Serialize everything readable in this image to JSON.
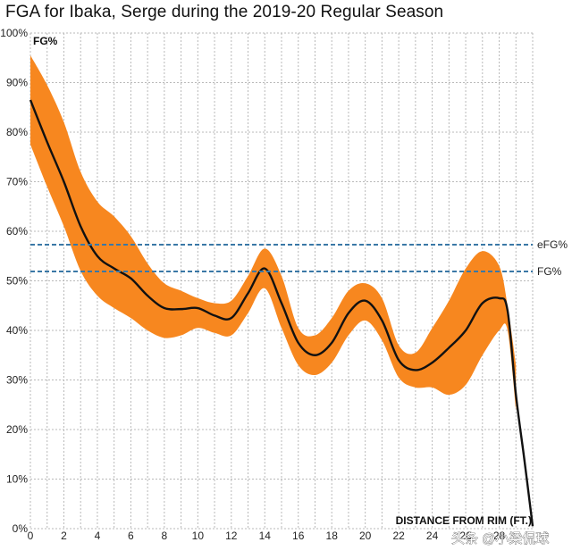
{
  "chart_data": {
    "type": "line",
    "title": "FGA for Ibaka, Serge during the 2019-20 Regular Season",
    "ylabel": "FG%",
    "xlabel": "DISTANCE FROM RIM (FT.)",
    "xlim": [
      0,
      30
    ],
    "ylim": [
      0,
      100
    ],
    "x_ticks": [
      "0",
      "2",
      "4",
      "6",
      "8",
      "10",
      "12",
      "14",
      "16",
      "18",
      "20",
      "22",
      "24",
      "26",
      "28"
    ],
    "y_ticks": [
      "0%",
      "10%",
      "20%",
      "30%",
      "40%",
      "50%",
      "60%",
      "70%",
      "80%",
      "90%",
      "100%"
    ],
    "grid": true,
    "series": [
      {
        "name": "FG%",
        "color": "#111111",
        "points": [
          [
            0,
            86.5
          ],
          [
            1,
            78
          ],
          [
            2,
            70
          ],
          [
            3,
            61
          ],
          [
            4,
            55
          ],
          [
            5,
            52.5
          ],
          [
            6,
            50.5
          ],
          [
            7,
            47
          ],
          [
            8,
            44.5
          ],
          [
            9,
            44.3
          ],
          [
            10,
            44.5
          ],
          [
            11,
            43
          ],
          [
            12,
            42.5
          ],
          [
            13,
            47.5
          ],
          [
            14,
            52.5
          ],
          [
            15,
            45.5
          ],
          [
            16,
            37.5
          ],
          [
            17,
            35
          ],
          [
            18,
            37.5
          ],
          [
            19,
            43.5
          ],
          [
            20,
            46
          ],
          [
            21,
            42
          ],
          [
            22,
            34
          ],
          [
            23,
            32
          ],
          [
            24,
            33.5
          ],
          [
            25,
            36.5
          ],
          [
            26,
            40
          ],
          [
            27,
            45.5
          ],
          [
            28,
            46.5
          ],
          [
            28.5,
            44
          ],
          [
            29,
            27
          ],
          [
            29.5,
            14
          ],
          [
            30,
            0.5
          ]
        ]
      },
      {
        "name": "FG% range",
        "color": "#f7871f",
        "upper": [
          [
            0,
            95.5
          ],
          [
            1,
            89.5
          ],
          [
            2,
            82
          ],
          [
            3,
            72
          ],
          [
            4,
            66
          ],
          [
            5,
            63
          ],
          [
            6,
            59
          ],
          [
            7,
            53.5
          ],
          [
            8,
            49.5
          ],
          [
            9,
            48
          ],
          [
            10,
            46.5
          ],
          [
            11,
            45.5
          ],
          [
            12,
            46
          ],
          [
            13,
            51
          ],
          [
            14,
            56.5
          ],
          [
            15,
            51
          ],
          [
            16,
            40.5
          ],
          [
            17,
            39
          ],
          [
            18,
            42.5
          ],
          [
            19,
            48
          ],
          [
            20,
            49.5
          ],
          [
            21,
            46.5
          ],
          [
            22,
            37
          ],
          [
            23,
            35.5
          ],
          [
            24,
            40.5
          ],
          [
            25,
            46
          ],
          [
            26,
            52.5
          ],
          [
            27,
            56
          ],
          [
            28,
            53
          ],
          [
            28.5,
            45
          ],
          [
            29,
            33
          ]
        ],
        "lower": [
          [
            0,
            77.5
          ],
          [
            1,
            69
          ],
          [
            2,
            61
          ],
          [
            3,
            52
          ],
          [
            4,
            47
          ],
          [
            5,
            44.5
          ],
          [
            6,
            42.5
          ],
          [
            7,
            40
          ],
          [
            8,
            38.5
          ],
          [
            9,
            39
          ],
          [
            10,
            40.5
          ],
          [
            11,
            39.5
          ],
          [
            12,
            39
          ],
          [
            13,
            43.5
          ],
          [
            14,
            48.5
          ],
          [
            15,
            40.5
          ],
          [
            16,
            33
          ],
          [
            17,
            31
          ],
          [
            18,
            33.5
          ],
          [
            19,
            39
          ],
          [
            20,
            42
          ],
          [
            21,
            38
          ],
          [
            22,
            30.5
          ],
          [
            23,
            28.5
          ],
          [
            24,
            28.5
          ],
          [
            25,
            27
          ],
          [
            26,
            29
          ],
          [
            27,
            35
          ],
          [
            28,
            40
          ],
          [
            28.5,
            40
          ],
          [
            29,
            24
          ]
        ]
      }
    ],
    "reference_lines": [
      {
        "label": "eFG%",
        "value": 57.3,
        "color": "#3a78a6"
      },
      {
        "label": "FG%",
        "value": 51.9,
        "color": "#3a78a6"
      }
    ],
    "annotations": [
      "头条 @小梁侃球"
    ]
  }
}
